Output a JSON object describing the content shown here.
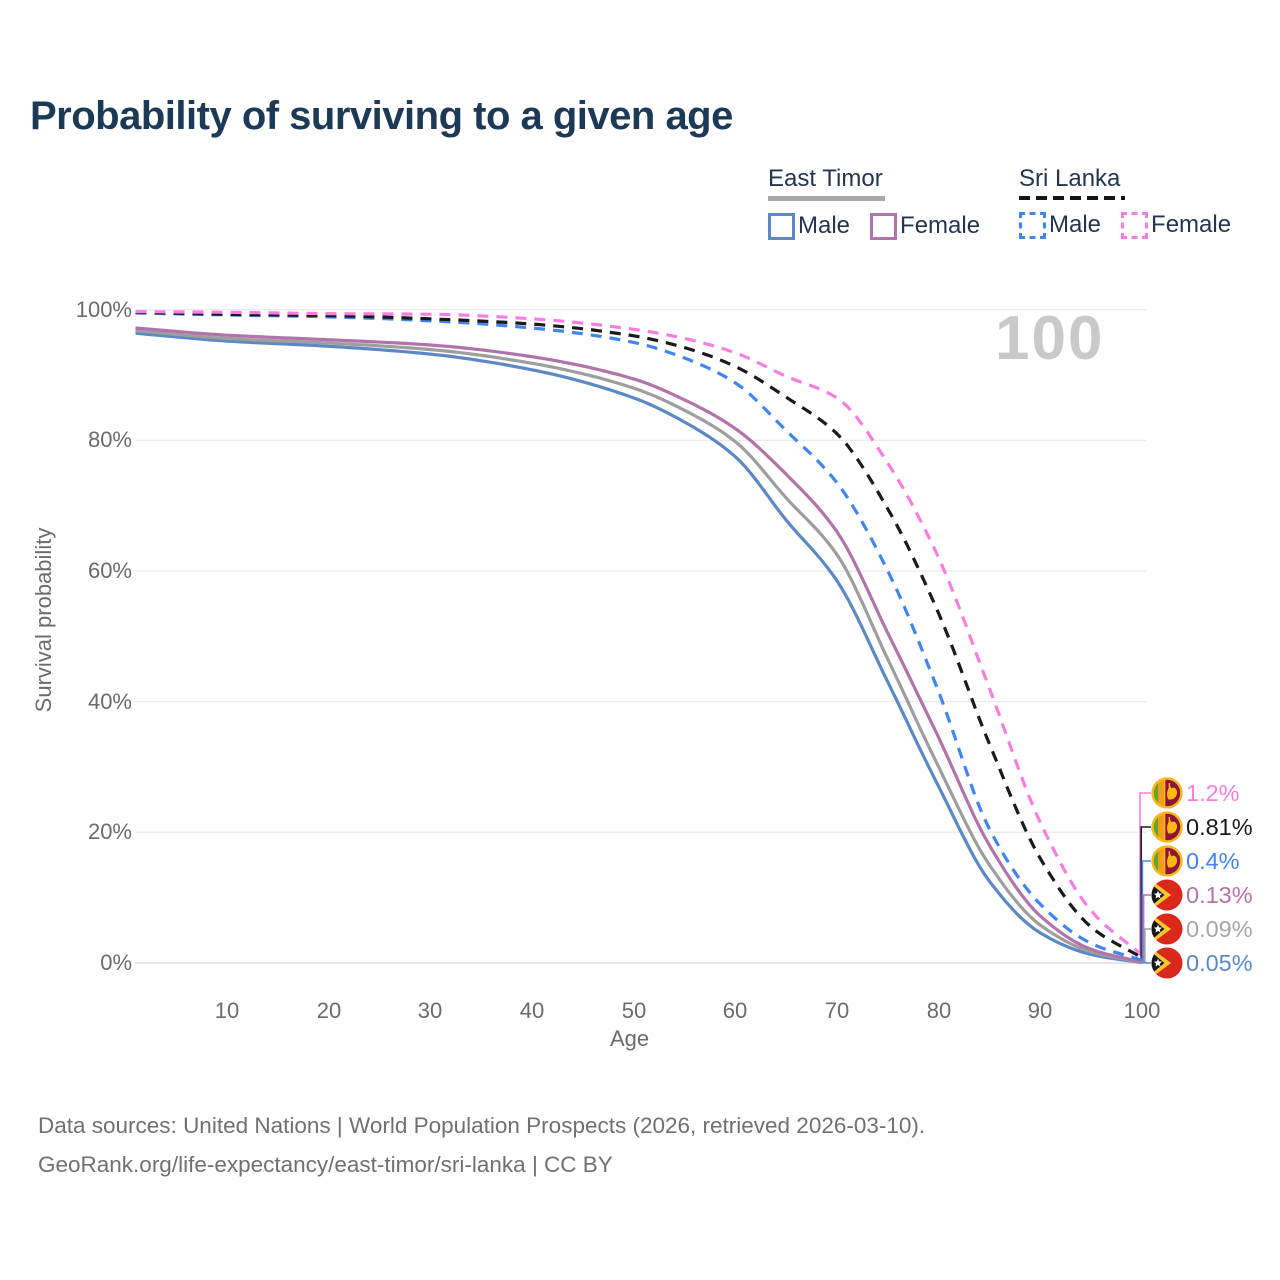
{
  "title": "Probability of surviving to a given age",
  "watermark": "100",
  "legend": {
    "groups": [
      {
        "name": "East Timor",
        "style": "solid",
        "items": [
          {
            "label": "Male",
            "series": "et-male"
          },
          {
            "label": "Female",
            "series": "et-female"
          }
        ]
      },
      {
        "name": "Sri Lanka",
        "style": "dashed",
        "items": [
          {
            "label": "Male",
            "series": "sl-male"
          },
          {
            "label": "Female",
            "series": "sl-female"
          }
        ]
      }
    ]
  },
  "axes": {
    "y_label": "Survival probability",
    "x_label": "Age",
    "x_tick_labels": [
      "10",
      "20",
      "30",
      "40",
      "50",
      "60",
      "70",
      "80",
      "90",
      "100"
    ],
    "x_tick_values": [
      10,
      20,
      30,
      40,
      50,
      60,
      70,
      80,
      90,
      100
    ],
    "y_tick_labels": [
      "100%",
      "80%",
      "60%",
      "40%",
      "20%",
      "0%"
    ],
    "y_tick_values": [
      100,
      80,
      60,
      40,
      20,
      0
    ]
  },
  "source": {
    "line1": "Data sources: United Nations | World Population Prospects (2026, retrieved 2026-03-10).",
    "line2": "GeoRank.org/life-expectancy/east-timor/sri-lanka | CC BY"
  },
  "chart_data": {
    "type": "line",
    "title": "Probability of surviving to a given age",
    "xlabel": "Age",
    "ylabel": "Survival probability",
    "x_range": [
      1,
      100
    ],
    "y_range_pct": [
      0,
      100
    ],
    "grid": "horizontal",
    "legend_position": "top-right",
    "ages": [
      1,
      10,
      20,
      30,
      40,
      50,
      55,
      60,
      65,
      70,
      75,
      80,
      85,
      90,
      95,
      100
    ],
    "series": [
      {
        "id": "sl-female",
        "name": "Sri Lanka Female",
        "country": "Sri Lanka",
        "sex": "Female",
        "color": "#fa7de2",
        "dashed": true,
        "flag": "sri-lanka",
        "end_label": "1.2%",
        "end_value_pct": 1.2,
        "values": [
          99.7,
          99.6,
          99.4,
          99.3,
          98.6,
          97.0,
          95.6,
          93.4,
          89.8,
          86.5,
          76.5,
          62.0,
          42.0,
          21.5,
          8.0,
          1.2
        ]
      },
      {
        "id": "sl-both",
        "name": "Sri Lanka (both sexes)",
        "country": "Sri Lanka",
        "sex": "Both",
        "color": "#1a1a1a",
        "dashed": true,
        "flag": "sri-lanka",
        "end_label": "0.81%",
        "end_value_pct": 0.81,
        "values": [
          99.6,
          99.3,
          99.1,
          98.6,
          97.8,
          96.0,
          94.2,
          91.3,
          86.6,
          81.0,
          69.5,
          53.5,
          33.5,
          16.0,
          5.5,
          0.81
        ]
      },
      {
        "id": "sl-male",
        "name": "Sri Lanka Male",
        "country": "Sri Lanka",
        "sex": "Male",
        "color": "#4185f3",
        "dashed": true,
        "flag": "sri-lanka",
        "end_label": "0.4%",
        "end_value_pct": 0.4,
        "values": [
          99.5,
          99.2,
          98.9,
          98.3,
          97.2,
          95.0,
          92.6,
          88.8,
          81.5,
          73.5,
          60.0,
          41.5,
          20.5,
          9.0,
          3.0,
          0.4
        ]
      },
      {
        "id": "et-female",
        "name": "East Timor Female",
        "country": "East Timor",
        "sex": "Female",
        "color": "#b273aa",
        "dashed": false,
        "flag": "east-timor",
        "end_label": "0.13%",
        "end_value_pct": 0.13,
        "values": [
          97.2,
          96.1,
          95.4,
          94.6,
          92.8,
          89.4,
          86.2,
          81.8,
          74.8,
          66.0,
          50.5,
          34.5,
          18.0,
          7.2,
          2.1,
          0.13
        ]
      },
      {
        "id": "et-both",
        "name": "East Timor (both sexes)",
        "country": "East Timor",
        "sex": "Both",
        "color": "#9e9e9e",
        "label_color": "#a6a6a6",
        "dashed": false,
        "flag": "east-timor",
        "end_label": "0.09%",
        "end_value_pct": 0.09,
        "values": [
          96.8,
          95.6,
          94.9,
          93.9,
          91.8,
          88.0,
          84.6,
          79.8,
          71.2,
          62.5,
          46.5,
          30.0,
          15.0,
          5.8,
          1.7,
          0.09
        ]
      },
      {
        "id": "et-male",
        "name": "East Timor Male",
        "country": "East Timor",
        "sex": "Male",
        "color": "#5c88c5",
        "dashed": false,
        "flag": "east-timor",
        "end_label": "0.05%",
        "end_value_pct": 0.05,
        "values": [
          96.4,
          95.2,
          94.4,
          93.2,
          90.8,
          86.5,
          82.8,
          77.5,
          67.8,
          58.5,
          43.0,
          27.0,
          12.5,
          4.6,
          1.3,
          0.05
        ]
      }
    ]
  }
}
